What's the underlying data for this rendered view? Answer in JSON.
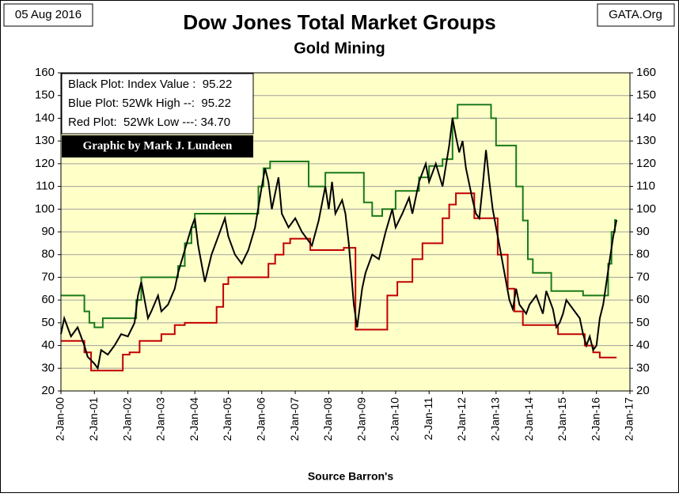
{
  "chart_data": {
    "type": "line",
    "date": "05 Aug 2016",
    "source_site": "GATA.Org",
    "title": "Dow Jones Total Market Groups",
    "subtitle": "Gold Mining",
    "legend_lines": [
      "Black Plot: Index Value :  95.22",
      "Blue Plot: 52Wk High --:  95.22",
      "Red Plot:  52Wk Low ---: 34.70"
    ],
    "credit": "Graphic by Mark J. Lundeen",
    "xlabel": "Source Barron's",
    "xlim": [
      2000,
      2017
    ],
    "xticks": [
      {
        "value": 2000,
        "label": "2-Jan-00"
      },
      {
        "value": 2001,
        "label": "2-Jan-01"
      },
      {
        "value": 2002,
        "label": "2-Jan-02"
      },
      {
        "value": 2003,
        "label": "2-Jan-03"
      },
      {
        "value": 2004,
        "label": "2-Jan-04"
      },
      {
        "value": 2005,
        "label": "2-Jan-05"
      },
      {
        "value": 2006,
        "label": "2-Jan-06"
      },
      {
        "value": 2007,
        "label": "2-Jan-07"
      },
      {
        "value": 2008,
        "label": "2-Jan-08"
      },
      {
        "value": 2009,
        "label": "2-Jan-09"
      },
      {
        "value": 2010,
        "label": "2-Jan-10"
      },
      {
        "value": 2011,
        "label": "2-Jan-11"
      },
      {
        "value": 2012,
        "label": "2-Jan-12"
      },
      {
        "value": 2013,
        "label": "2-Jan-13"
      },
      {
        "value": 2014,
        "label": "2-Jan-14"
      },
      {
        "value": 2015,
        "label": "2-Jan-15"
      },
      {
        "value": 2016,
        "label": "2-Jan-16"
      },
      {
        "value": 2017,
        "label": "2-Jan-17"
      }
    ],
    "ylim": [
      20,
      160
    ],
    "yticks": [
      20,
      30,
      40,
      50,
      60,
      70,
      80,
      90,
      100,
      110,
      120,
      130,
      140,
      150,
      160
    ],
    "y2lim": [
      20,
      160
    ],
    "y2ticks": [
      20,
      30,
      40,
      50,
      60,
      70,
      80,
      90,
      100,
      110,
      120,
      130,
      140,
      150,
      160
    ],
    "grid": true,
    "series": [
      {
        "color": "#000000",
        "x": [
          2000.0,
          2000.1,
          2000.3,
          2000.5,
          2000.7,
          2000.8,
          2001.0,
          2001.1,
          2001.2,
          2001.4,
          2001.6,
          2001.8,
          2002.0,
          2002.2,
          2002.3,
          2002.4,
          2002.6,
          2002.7,
          2002.9,
          2003.0,
          2003.2,
          2003.4,
          2003.5,
          2003.7,
          2003.9,
          2004.0,
          2004.1,
          2004.3,
          2004.5,
          2004.7,
          2004.9,
          2005.0,
          2005.2,
          2005.4,
          2005.6,
          2005.8,
          2006.0,
          2006.1,
          2006.2,
          2006.3,
          2006.5,
          2006.6,
          2006.8,
          2007.0,
          2007.2,
          2007.4,
          2007.5,
          2007.7,
          2007.9,
          2008.0,
          2008.1,
          2008.2,
          2008.4,
          2008.5,
          2008.6,
          2008.75,
          2008.85,
          2009.0,
          2009.1,
          2009.3,
          2009.5,
          2009.7,
          2009.9,
          2010.0,
          2010.2,
          2010.4,
          2010.5,
          2010.7,
          2010.9,
          2011.0,
          2011.2,
          2011.4,
          2011.6,
          2011.7,
          2011.8,
          2011.9,
          2012.0,
          2012.1,
          2012.3,
          2012.4,
          2012.5,
          2012.6,
          2012.7,
          2012.8,
          2012.9,
          2013.0,
          2013.1,
          2013.3,
          2013.4,
          2013.5,
          2013.6,
          2013.7,
          2013.9,
          2014.0,
          2014.2,
          2014.4,
          2014.5,
          2014.7,
          2014.8,
          2014.9,
          2015.0,
          2015.1,
          2015.3,
          2015.5,
          2015.6,
          2015.7,
          2015.8,
          2015.9,
          2016.0,
          2016.1,
          2016.2,
          2016.3,
          2016.4,
          2016.5,
          2016.6
        ],
        "values": [
          45,
          52,
          44,
          48,
          40,
          35,
          32,
          30,
          38,
          36,
          40,
          45,
          44,
          50,
          62,
          68,
          52,
          55,
          62,
          55,
          58,
          65,
          72,
          82,
          92,
          96,
          84,
          68,
          80,
          88,
          96,
          88,
          80,
          76,
          82,
          92,
          110,
          118,
          112,
          100,
          114,
          98,
          92,
          96,
          90,
          86,
          84,
          95,
          110,
          100,
          112,
          98,
          104,
          98,
          85,
          58,
          48,
          65,
          72,
          80,
          78,
          90,
          100,
          92,
          98,
          105,
          98,
          112,
          120,
          112,
          120,
          110,
          128,
          140,
          132,
          125,
          130,
          118,
          104,
          98,
          96,
          110,
          126,
          112,
          100,
          92,
          84,
          68,
          60,
          56,
          65,
          58,
          54,
          58,
          62,
          54,
          64,
          56,
          48,
          50,
          54,
          60,
          56,
          52,
          45,
          40,
          44,
          38,
          40,
          52,
          58,
          68,
          78,
          88,
          95.22
        ]
      },
      {
        "color": "#1a7a1a",
        "x": [
          2000,
          2000.7,
          2000.7,
          2000.85,
          2000.85,
          2001.0,
          2001.0,
          2001.25,
          2001.25,
          2002.25,
          2002.25,
          2002.4,
          2002.4,
          2003.5,
          2003.5,
          2003.7,
          2003.7,
          2003.9,
          2003.9,
          2004.0,
          2004.0,
          2005.9,
          2005.9,
          2006.05,
          2006.05,
          2006.25,
          2006.25,
          2007.4,
          2007.4,
          2007.9,
          2007.9,
          2009.05,
          2009.05,
          2009.3,
          2009.3,
          2009.6,
          2009.6,
          2010.0,
          2010.0,
          2010.7,
          2010.7,
          2011.0,
          2011.0,
          2011.4,
          2011.4,
          2011.7,
          2011.7,
          2011.85,
          2011.85,
          2012.85,
          2012.85,
          2013.0,
          2013.0,
          2013.6,
          2013.6,
          2013.8,
          2013.8,
          2013.95,
          2013.95,
          2014.1,
          2014.1,
          2014.65,
          2014.65,
          2015.6,
          2015.6,
          2016.35,
          2016.35,
          2016.45,
          2016.45,
          2016.55,
          2016.55,
          2016.6
        ],
        "values": [
          62,
          62,
          55,
          55,
          50,
          50,
          48,
          48,
          52,
          52,
          60,
          60,
          70,
          70,
          75,
          75,
          85,
          85,
          92,
          92,
          98,
          98,
          110,
          110,
          118,
          118,
          121,
          121,
          110,
          110,
          116,
          116,
          103,
          103,
          97,
          97,
          100,
          100,
          108,
          108,
          114,
          114,
          119,
          119,
          122,
          122,
          140,
          140,
          146,
          146,
          140,
          140,
          128,
          128,
          110,
          110,
          95,
          95,
          78,
          78,
          72,
          72,
          64,
          64,
          62,
          62,
          76,
          76,
          90,
          90,
          95.22,
          95.22
        ]
      },
      {
        "color": "#c00000",
        "x": [
          2000,
          2000.7,
          2000.7,
          2000.9,
          2000.9,
          2001.85,
          2001.85,
          2002.05,
          2002.05,
          2002.35,
          2002.35,
          2003.0,
          2003.0,
          2003.4,
          2003.4,
          2003.7,
          2003.7,
          2004.65,
          2004.65,
          2004.85,
          2004.85,
          2005.0,
          2005.0,
          2006.2,
          2006.2,
          2006.4,
          2006.4,
          2006.65,
          2006.65,
          2006.85,
          2006.85,
          2007.45,
          2007.45,
          2008.45,
          2008.45,
          2008.8,
          2008.8,
          2009.75,
          2009.75,
          2010.05,
          2010.05,
          2010.5,
          2010.5,
          2010.8,
          2010.8,
          2011.4,
          2011.4,
          2011.6,
          2011.6,
          2011.8,
          2011.8,
          2012.35,
          2012.35,
          2013.05,
          2013.05,
          2013.35,
          2013.35,
          2013.55,
          2013.55,
          2013.8,
          2013.8,
          2014.85,
          2014.85,
          2015.65,
          2015.65,
          2015.9,
          2015.9,
          2016.1,
          2016.1,
          2016.6
        ],
        "values": [
          42,
          42,
          37,
          37,
          29,
          29,
          36,
          36,
          37,
          37,
          42,
          42,
          45,
          45,
          49,
          49,
          50,
          50,
          57,
          57,
          67,
          67,
          70,
          70,
          76,
          76,
          80,
          80,
          85,
          85,
          87,
          87,
          82,
          82,
          83,
          83,
          47,
          47,
          62,
          62,
          68,
          68,
          78,
          78,
          85,
          85,
          96,
          96,
          102,
          102,
          107,
          107,
          96,
          96,
          80,
          80,
          65,
          65,
          55,
          55,
          49,
          49,
          45,
          45,
          40,
          40,
          37,
          37,
          34.7,
          34.7
        ]
      }
    ]
  }
}
